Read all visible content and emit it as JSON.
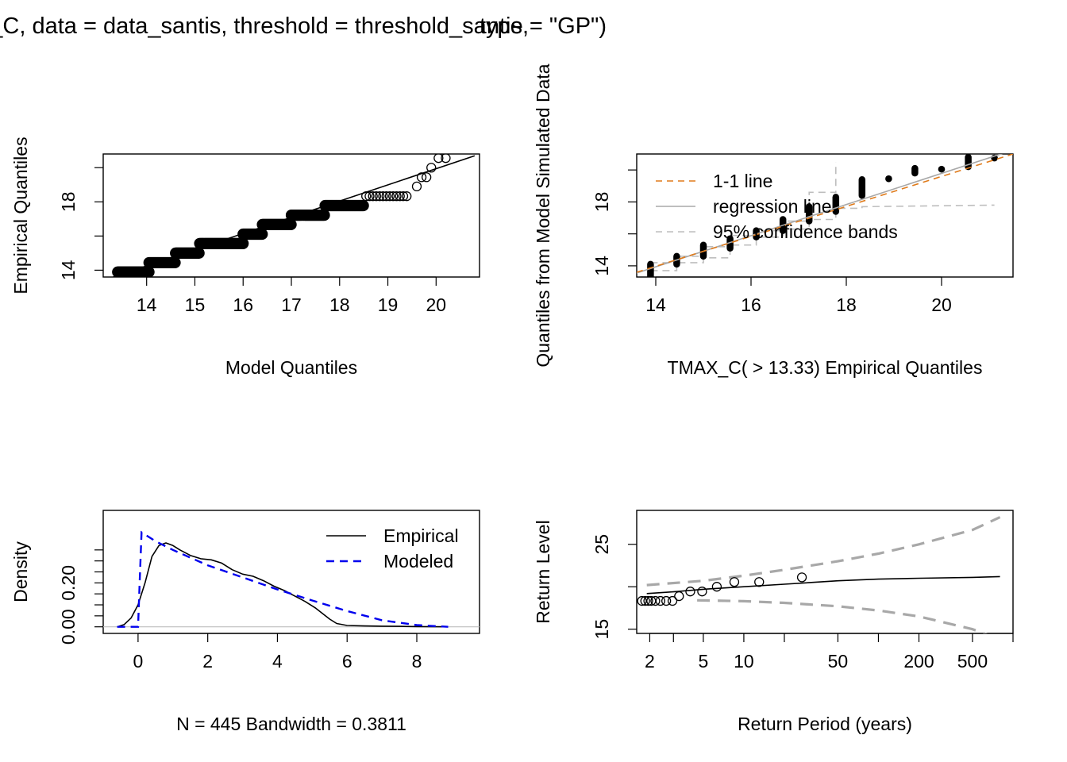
{
  "figure": {
    "title_left": "fevd(x = TMAX_C, data = data_santis, threshold = threshold_santis,",
    "title_right": "type = \"GP\")"
  },
  "colors": {
    "black": "#000000",
    "orange": "#E07B1B",
    "gray": "#A8A8A8",
    "blue": "#0000EE",
    "lightgray": "#BEBEBE"
  },
  "chart_data": [
    {
      "id": "qq-model",
      "type": "scatter",
      "xlabel": "Model Quantiles",
      "ylabel": "Empirical Quantiles",
      "xlim": [
        13.1,
        20.9
      ],
      "ylim": [
        13.6,
        20.8
      ],
      "xticks": [
        14,
        15,
        16,
        17,
        18,
        19,
        20
      ],
      "yticks": [
        14,
        18
      ],
      "yticks_unlabeled": [
        16,
        20
      ],
      "line": [
        [
          13.1,
          13.4
        ],
        [
          20.8,
          20.7
        ]
      ],
      "points": [
        {
          "y": 13.89,
          "x_from": 13.4,
          "x_to": 14.05
        },
        {
          "y": 14.44,
          "x_from": 14.05,
          "x_to": 14.6
        },
        {
          "y": 15.0,
          "x_from": 14.6,
          "x_to": 15.1
        },
        {
          "y": 15.56,
          "x_from": 15.1,
          "x_to": 16.0
        },
        {
          "y": 16.11,
          "x_from": 16.0,
          "x_to": 16.4
        },
        {
          "y": 16.67,
          "x_from": 16.4,
          "x_to": 17.0
        },
        {
          "y": 17.22,
          "x_from": 17.0,
          "x_to": 17.7
        },
        {
          "y": 17.78,
          "x_from": 17.7,
          "x_to": 18.5
        },
        {
          "y": 18.33,
          "x_from": 18.55,
          "x_to": 19.45
        },
        {
          "y": 18.9,
          "x": 19.6
        },
        {
          "y": 19.44,
          "x": 19.7
        },
        {
          "y": 19.44,
          "x": 19.8
        },
        {
          "y": 20.0,
          "x": 19.9
        },
        {
          "y": 20.56,
          "x": 20.05
        },
        {
          "y": 20.56,
          "x": 20.2
        },
        {
          "y": 21.11,
          "x": 20.5
        }
      ]
    },
    {
      "id": "qq-simulated",
      "type": "scatter",
      "xlabel": "TMAX_C( > 13.33) Empirical Quantiles",
      "ylabel": "Quantiles from Model Simulated Data",
      "xlim": [
        13.6,
        21.5
      ],
      "ylim": [
        13.3,
        21.0
      ],
      "xticks": [
        14,
        16,
        18,
        20
      ],
      "yticks": [
        14,
        18
      ],
      "yticks_unlabeled": [
        16,
        20
      ],
      "legend": {
        "position": "top-left",
        "entries": [
          "1-1 line",
          "regression line",
          "95% confidence bands"
        ]
      },
      "x": [
        13.89,
        14.44,
        15.0,
        15.56,
        16.11,
        16.67,
        17.22,
        17.78,
        18.33,
        18.89,
        19.44,
        20.0,
        20.56,
        21.11
      ],
      "y_min": [
        13.3,
        14.1,
        14.6,
        15.1,
        15.8,
        16.2,
        16.8,
        17.4,
        18.4,
        19.4,
        19.8,
        20.0,
        20.2,
        20.7
      ],
      "y_max": [
        14.1,
        14.6,
        15.3,
        15.7,
        16.2,
        16.9,
        17.7,
        18.3,
        19.4,
        19.5,
        20.1,
        20.1,
        20.8,
        20.8
      ],
      "lower_band": [
        [
          13.89,
          13.7
        ],
        [
          14.44,
          13.7
        ],
        [
          14.44,
          14.2
        ],
        [
          15.0,
          14.2
        ],
        [
          15.0,
          14.5
        ],
        [
          15.56,
          14.5
        ],
        [
          15.56,
          15.3
        ],
        [
          16.11,
          15.3
        ],
        [
          16.11,
          15.8
        ],
        [
          16.67,
          15.8
        ],
        [
          16.67,
          16.3
        ],
        [
          17.22,
          16.3
        ],
        [
          17.22,
          16.9
        ],
        [
          17.78,
          16.9
        ],
        [
          17.78,
          17.6
        ],
        [
          18.33,
          17.6
        ],
        [
          18.33,
          17.7
        ],
        [
          21.11,
          17.8
        ]
      ],
      "upper_band": [
        [
          13.89,
          14.2
        ],
        [
          14.44,
          14.2
        ],
        [
          14.44,
          14.6
        ],
        [
          15.0,
          14.6
        ],
        [
          15.0,
          15.2
        ],
        [
          15.56,
          15.2
        ],
        [
          15.56,
          15.9
        ],
        [
          16.11,
          15.9
        ],
        [
          16.11,
          16.2
        ],
        [
          16.67,
          16.2
        ],
        [
          16.67,
          16.8
        ],
        [
          17.22,
          16.8
        ],
        [
          17.22,
          18.6
        ],
        [
          17.78,
          18.6
        ],
        [
          17.78,
          20.5
        ]
      ]
    },
    {
      "id": "density",
      "type": "line",
      "xlabel": "N = 445   Bandwidth = 0.3811",
      "ylabel": "Density",
      "xlim": [
        -1.0,
        9.8
      ],
      "ylim": [
        -0.03,
        0.53
      ],
      "xticks": [
        0,
        2,
        4,
        6,
        8
      ],
      "yticks": [
        0.0,
        0.2
      ],
      "ytick_labels": [
        "0.00",
        "0.20"
      ],
      "yticks_unlabeled": [
        0.05,
        0.1,
        0.15,
        0.25,
        0.3,
        0.35
      ],
      "legend": {
        "position": "top-right",
        "entries": [
          "Empirical",
          "Modeled"
        ]
      },
      "series": [
        {
          "name": "Empirical",
          "x": [
            -0.6,
            -0.4,
            -0.2,
            0.0,
            0.2,
            0.4,
            0.6,
            0.8,
            1.0,
            1.2,
            1.5,
            1.8,
            2.1,
            2.4,
            2.7,
            3.0,
            3.3,
            3.6,
            3.9,
            4.2,
            4.5,
            4.8,
            5.1,
            5.3,
            5.5,
            5.7,
            6.0,
            6.5,
            7.0,
            7.5,
            8.0,
            8.5,
            8.9
          ],
          "y": [
            0.0,
            0.01,
            0.04,
            0.1,
            0.2,
            0.32,
            0.37,
            0.382,
            0.37,
            0.35,
            0.325,
            0.31,
            0.305,
            0.29,
            0.26,
            0.24,
            0.23,
            0.21,
            0.185,
            0.165,
            0.14,
            0.115,
            0.085,
            0.06,
            0.035,
            0.015,
            0.006,
            0.004,
            0.003,
            0.002,
            0.001,
            0.0005,
            0.0
          ]
        },
        {
          "name": "Modeled",
          "x": [
            -0.6,
            0.0,
            0.05,
            0.1,
            0.5,
            1.0,
            1.5,
            2.0,
            3.0,
            4.0,
            5.0,
            6.0,
            7.0,
            8.0,
            8.9
          ],
          "y": [
            0.0,
            0.0,
            0.22,
            0.43,
            0.39,
            0.35,
            0.315,
            0.28,
            0.225,
            0.17,
            0.12,
            0.072,
            0.03,
            0.008,
            0.0
          ]
        }
      ]
    },
    {
      "id": "return-level",
      "type": "line",
      "xlabel": "Return Period (years)",
      "ylabel": "Return Level",
      "xscale": "log",
      "xlim": [
        1.6,
        1000
      ],
      "ylim": [
        14.5,
        29.0
      ],
      "xticks": [
        2,
        5,
        10,
        50,
        200,
        500
      ],
      "xticks_unlabeled": [
        3,
        20,
        100,
        1000
      ],
      "yticks": [
        15,
        25
      ],
      "yticks_unlabeled": [
        20
      ],
      "estimate": [
        [
          1.9,
          19.2
        ],
        [
          3,
          19.4
        ],
        [
          5,
          19.7
        ],
        [
          10,
          20.0
        ],
        [
          20,
          20.3
        ],
        [
          50,
          20.7
        ],
        [
          100,
          20.9
        ],
        [
          200,
          21.0
        ],
        [
          500,
          21.1
        ],
        [
          800,
          21.2
        ]
      ],
      "upper_ci": [
        [
          1.9,
          20.2
        ],
        [
          5,
          20.7
        ],
        [
          10,
          21.3
        ],
        [
          20,
          22.0
        ],
        [
          50,
          23.0
        ],
        [
          100,
          23.9
        ],
        [
          200,
          25.0
        ],
        [
          500,
          26.7
        ],
        [
          800,
          28.2
        ]
      ],
      "lower_ci": [
        [
          4.5,
          18.4
        ],
        [
          10,
          18.3
        ],
        [
          20,
          18.1
        ],
        [
          50,
          17.7
        ],
        [
          100,
          17.2
        ],
        [
          200,
          16.5
        ],
        [
          500,
          15.0
        ],
        [
          800,
          13.8
        ]
      ],
      "points": [
        {
          "x": 1.75,
          "y": 18.33
        },
        {
          "x": 1.85,
          "y": 18.33
        },
        {
          "x": 1.95,
          "y": 18.33
        },
        {
          "x": 2.05,
          "y": 18.33
        },
        {
          "x": 2.2,
          "y": 18.33
        },
        {
          "x": 2.4,
          "y": 18.33
        },
        {
          "x": 2.65,
          "y": 18.33
        },
        {
          "x": 2.95,
          "y": 18.33
        },
        {
          "x": 3.3,
          "y": 18.89
        },
        {
          "x": 4.0,
          "y": 19.44
        },
        {
          "x": 4.9,
          "y": 19.44
        },
        {
          "x": 6.3,
          "y": 20.0
        },
        {
          "x": 8.5,
          "y": 20.56
        },
        {
          "x": 13.0,
          "y": 20.56
        },
        {
          "x": 27.0,
          "y": 21.11
        }
      ]
    }
  ]
}
